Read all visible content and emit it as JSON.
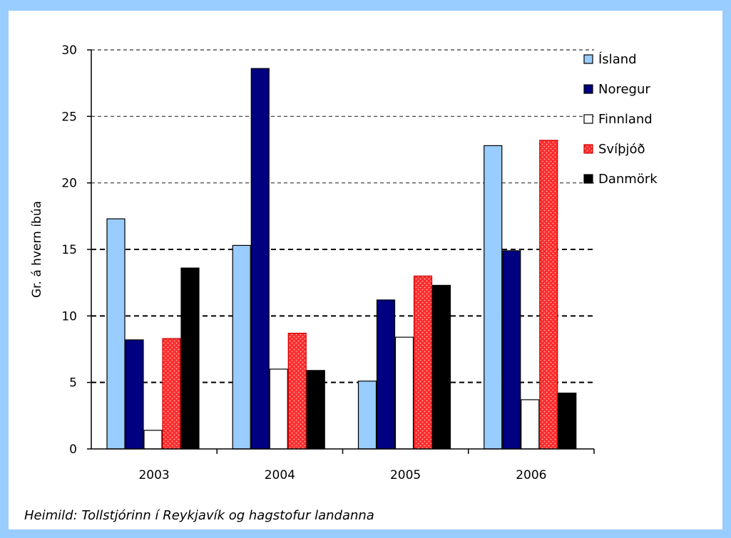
{
  "chart_data": {
    "type": "bar",
    "categories": [
      "2003",
      "2004",
      "2005",
      "2006"
    ],
    "series": [
      {
        "name": "Ísland",
        "values": [
          17.3,
          15.3,
          5.1,
          22.8
        ]
      },
      {
        "name": "Noregur",
        "values": [
          8.2,
          28.6,
          11.2,
          14.9
        ]
      },
      {
        "name": "Finnland",
        "values": [
          1.4,
          6.0,
          8.4,
          3.7
        ]
      },
      {
        "name": "Svíþjóð",
        "values": [
          8.3,
          8.7,
          13.0,
          23.2
        ]
      },
      {
        "name": "Danmörk",
        "values": [
          13.6,
          5.9,
          12.3,
          4.2
        ]
      }
    ],
    "ylabel": "Gr. á hvern íbúa",
    "xlabel": "",
    "ylim": [
      0,
      30
    ],
    "yticks": [
      "0",
      "5",
      "10",
      "15",
      "20",
      "25",
      "30"
    ],
    "grid": "horizontal dashed",
    "legend": "top-right",
    "colors": {
      "Ísland": "#99ccff",
      "Noregur": "#000080",
      "Finnland": "#ffffff",
      "Svíþjóð": "#ff3333",
      "Danmörk": "#000000",
      "frame": "#99ccff"
    }
  },
  "source": "Heimild: Tollstjórinn í Reykjavík og hagstofur landanna"
}
